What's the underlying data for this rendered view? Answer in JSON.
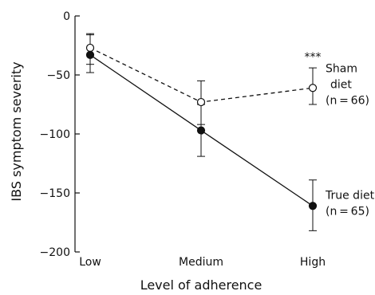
{
  "chart_data": {
    "type": "line",
    "categories": [
      "Low",
      "Medium",
      "High"
    ],
    "xlabel": "Level of adherence",
    "ylabel": "IBS symptom severity",
    "ylim": [
      -200,
      0
    ],
    "yticks": [
      0,
      -50,
      -100,
      -150,
      -200
    ],
    "grid": false,
    "series": [
      {
        "name": "Sham diet",
        "n_label": "(n = 66)",
        "marker": "open-circle",
        "line_style": "dashed",
        "values": [
          -27,
          -73,
          -61
        ],
        "err_low": [
          -48,
          -92,
          -75
        ],
        "err_high": [
          -15,
          -55,
          -44
        ],
        "name_lines": [
          "Sham",
          "diet"
        ]
      },
      {
        "name": "True diet",
        "n_label": "(n = 65)",
        "marker": "filled-circle",
        "line_style": "solid",
        "values": [
          -33,
          -97,
          -161
        ],
        "err_low": [
          -41,
          -119,
          -182
        ],
        "err_high": [
          -16,
          -75,
          -139
        ],
        "name_lines": [
          "True diet"
        ]
      }
    ],
    "annotations": [
      {
        "text": "***",
        "category": "High"
      }
    ],
    "colors": {
      "ink": "#111111",
      "open_fill": "#ffffff"
    }
  }
}
